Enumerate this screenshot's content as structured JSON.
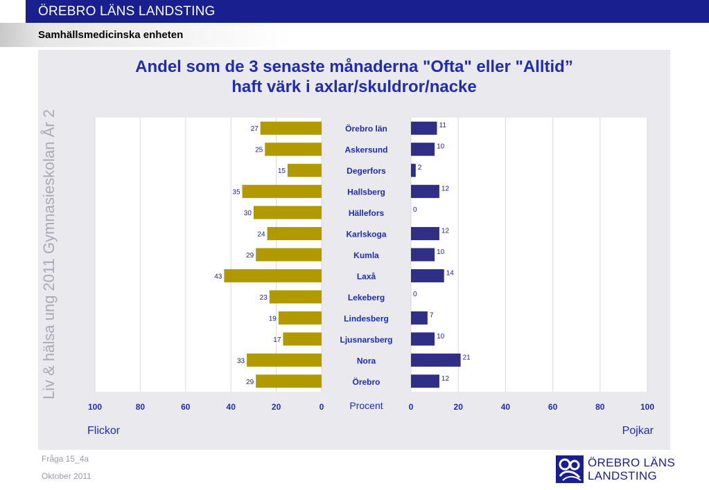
{
  "header": {
    "title": "ÖREBRO LÄNS LANDSTING",
    "subtitle": "Samhällsmedicinska enheten"
  },
  "side_label": "Liv & hälsa ung 2011 Gymnasieskolan År 2",
  "colors": {
    "header_bg": "#1a1f8f",
    "panel_bg": "#e9e9ee",
    "title": "#1f2bb3",
    "girls_bar": "#b09a00",
    "boys_bar": "#2e2f85"
  },
  "chart_data": {
    "type": "bar",
    "title_line1": "Andel som de 3 senaste månaderna \"Ofta\" eller \"Alltid”",
    "title_line2": "haft värk i axlar/skuldror/nacke",
    "center_axis_label": "Procent",
    "left_side_label": "Flickor",
    "right_side_label": "Pojkar",
    "categories": [
      "Örebro län",
      "Askersund",
      "Degerfors",
      "Hallsberg",
      "Hällefors",
      "Karlskoga",
      "Kumla",
      "Laxå",
      "Lekeberg",
      "Lindesberg",
      "Ljusnarsberg",
      "Nora",
      "Örebro"
    ],
    "series": [
      {
        "name": "Flickor",
        "side": "left",
        "values": [
          27,
          25,
          15,
          35,
          30,
          24,
          29,
          43,
          23,
          19,
          17,
          33,
          29
        ]
      },
      {
        "name": "Pojkar",
        "side": "right",
        "values": [
          11,
          10,
          2,
          12,
          0,
          12,
          10,
          14,
          0,
          7,
          10,
          21,
          12
        ]
      }
    ],
    "left_ticks": [
      "100",
      "80",
      "60",
      "40",
      "20",
      "0"
    ],
    "right_ticks": [
      "0",
      "20",
      "40",
      "60",
      "80",
      "100"
    ],
    "xlim": [
      0,
      100
    ],
    "grid": true
  },
  "footer": {
    "question": "Fråga 15_4a",
    "date": "Oktober 2011"
  },
  "logo": {
    "line1": "ÖREBRO LÄNS",
    "line2": "LANDSTING",
    "icon": "landsting-logo-icon"
  }
}
